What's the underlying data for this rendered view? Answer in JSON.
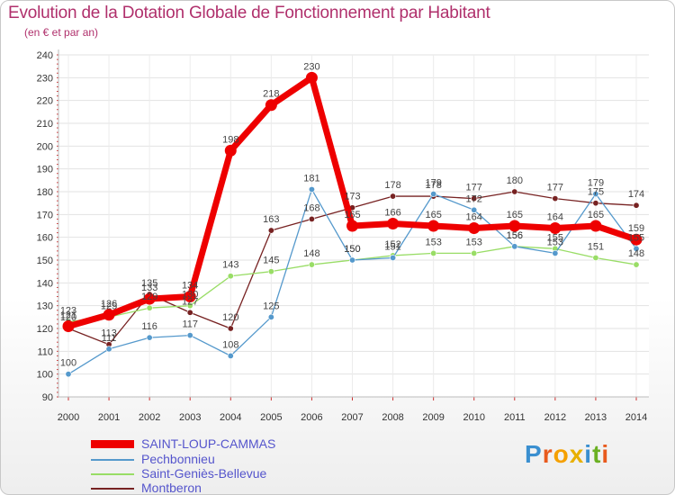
{
  "header": {
    "title": "Evolution de la Dotation Globale de Fonctionnement par Habitant",
    "subtitle": "(en € et par an)"
  },
  "logo": {
    "text": "Proxiti",
    "colors": [
      "#3a8fd0",
      "#e85a1e",
      "#f5a000",
      "#e8b000",
      "#3a8fd0",
      "#6bb022",
      "#e85a1e"
    ]
  },
  "chart_data": {
    "type": "line",
    "title": "Evolution de la Dotation Globale de Fonctionnement par Habitant",
    "subtitle": "(en € et par an)",
    "xlabel": "",
    "ylabel": "",
    "ylim": [
      90,
      240
    ],
    "yticks": [
      90,
      100,
      110,
      120,
      130,
      140,
      150,
      160,
      170,
      180,
      190,
      200,
      210,
      220,
      230,
      240
    ],
    "grid": true,
    "categories": [
      "2000",
      "2001",
      "2002",
      "2003",
      "2004",
      "2005",
      "2006",
      "2007",
      "2008",
      "2009",
      "2010",
      "2011",
      "2012",
      "2013",
      "2014"
    ],
    "series": [
      {
        "name": "SAINT-LOUP-CAMMAS",
        "color": "#ee0000",
        "values": [
          121,
          126,
          133,
          134,
          198,
          218,
          230,
          165,
          166,
          165,
          164,
          165,
          164,
          165,
          159
        ]
      },
      {
        "name": "Pechbonnieu",
        "color": "#5599cc",
        "values": [
          100,
          111,
          116,
          117,
          108,
          125,
          181,
          150,
          151,
          179,
          172,
          156,
          153,
          179,
          155
        ]
      },
      {
        "name": "Saint-Geniès-Bellevue",
        "color": "#99dd66",
        "values": [
          123,
          125,
          129,
          130,
          143,
          145,
          148,
          150,
          152,
          153,
          153,
          156,
          155,
          151,
          148
        ]
      },
      {
        "name": "Montberon",
        "color": "#772222",
        "values": [
          120,
          113,
          135,
          127,
          120,
          163,
          168,
          173,
          178,
          178,
          177,
          180,
          177,
          175,
          174
        ]
      }
    ]
  }
}
